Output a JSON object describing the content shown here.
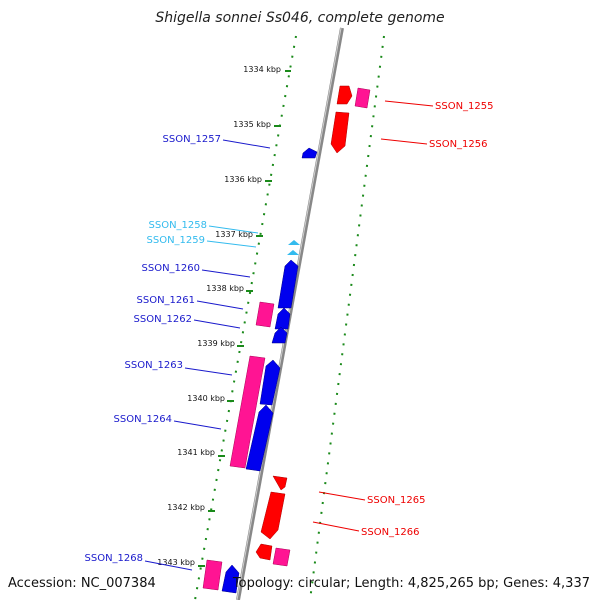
{
  "title": "Shigella sonnei Ss046, complete genome",
  "footer": {
    "accession": "Accession: NC_007384",
    "topology": "Topology: circular; Length: 4,825,265 bp; Genes: 4,337"
  },
  "colors": {
    "forward": "#ff0000",
    "reverse": "#0000ee",
    "reverse_light": "#33bbee",
    "other": "#ff1493",
    "ruler": "#1a8a1a",
    "backbone": "#888888"
  },
  "kbp_ticks": [
    "1334 kbp",
    "1335 kbp",
    "1336 kbp",
    "1337 kbp",
    "1338 kbp",
    "1339 kbp",
    "1340 kbp",
    "1341 kbp",
    "1342 kbp",
    "1343 kbp"
  ],
  "genes_right": [
    "SSON_1255",
    "SSON_1256",
    "SSON_1265",
    "SSON_1266"
  ],
  "genes_left": [
    "SSON_1257",
    "SSON_1258",
    "SSON_1259",
    "SSON_1260",
    "SSON_1261",
    "SSON_1262",
    "SSON_1263",
    "SSON_1264",
    "SSON_1268"
  ]
}
